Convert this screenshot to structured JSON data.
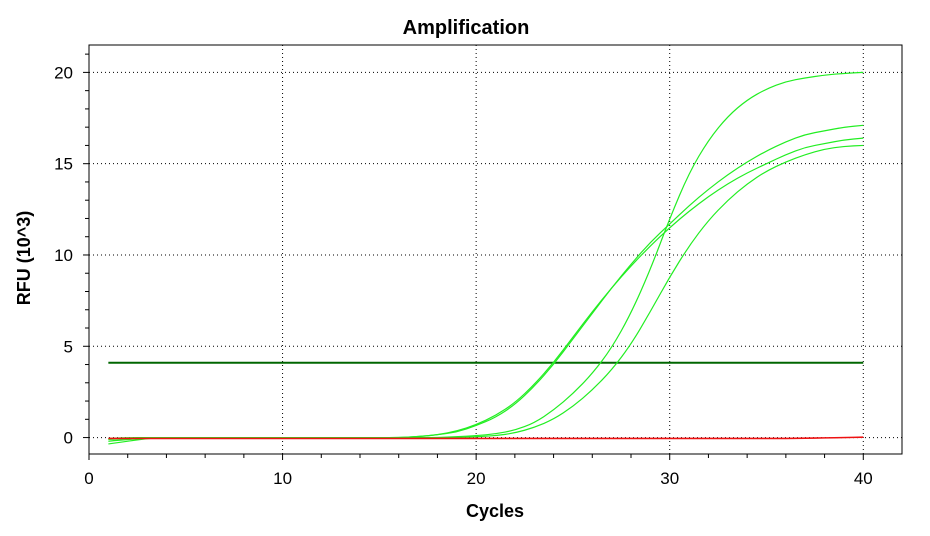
{
  "chart_data": {
    "type": "line",
    "title": "Amplification",
    "xlabel": "Cycles",
    "ylabel": "RFU (10^3)",
    "xlim": [
      0,
      42
    ],
    "ylim": [
      -0.9,
      21.5
    ],
    "x_ticks": [
      0,
      10,
      20,
      30,
      40
    ],
    "y_ticks": [
      0,
      5,
      10,
      15,
      20
    ],
    "grid": true,
    "legend": "none",
    "x": [
      1,
      2,
      3,
      4,
      5,
      6,
      7,
      8,
      9,
      10,
      11,
      12,
      13,
      14,
      15,
      16,
      17,
      18,
      19,
      20,
      21,
      22,
      23,
      24,
      25,
      26,
      27,
      28,
      29,
      30,
      31,
      32,
      33,
      34,
      35,
      36,
      37,
      38,
      39,
      40
    ],
    "series": [
      {
        "color": "#22ee22",
        "values": [
          -0.35,
          -0.2,
          -0.05,
          0,
          0,
          0,
          0,
          0,
          0,
          0,
          0,
          0,
          0,
          0,
          0,
          0,
          0.05,
          0.15,
          0.35,
          0.7,
          1.2,
          1.9,
          2.9,
          4.1,
          5.5,
          6.9,
          8.2,
          9.4,
          10.5,
          11.5,
          12.4,
          13.2,
          13.9,
          14.5,
          15.0,
          15.5,
          15.9,
          16.1,
          16.3,
          16.4
        ]
      },
      {
        "color": "#22ee22",
        "values": [
          -0.2,
          -0.1,
          -0.05,
          0,
          0,
          0,
          0,
          0,
          0,
          0,
          0,
          0,
          0,
          0,
          0,
          0,
          0.05,
          0.15,
          0.3,
          0.65,
          1.1,
          1.8,
          2.8,
          4.0,
          5.4,
          6.8,
          8.2,
          9.5,
          10.7,
          11.7,
          12.7,
          13.6,
          14.4,
          15.1,
          15.7,
          16.2,
          16.6,
          16.8,
          17.0,
          17.1
        ]
      },
      {
        "color": "#22ee22",
        "values": [
          -0.1,
          -0.05,
          0,
          0,
          0,
          0,
          0,
          0,
          0,
          0,
          0,
          0,
          0,
          0,
          0,
          0,
          0,
          0,
          0.05,
          0.1,
          0.2,
          0.4,
          0.8,
          1.5,
          2.4,
          3.5,
          4.9,
          6.8,
          9.2,
          12.0,
          14.5,
          16.3,
          17.6,
          18.5,
          19.1,
          19.5,
          19.7,
          19.85,
          19.95,
          20.0
        ]
      },
      {
        "color": "#22ee22",
        "values": [
          -0.05,
          0,
          0,
          0,
          0,
          0,
          0,
          0,
          0,
          0,
          0,
          0,
          0,
          0,
          0,
          0,
          0,
          0,
          0,
          0.05,
          0.1,
          0.25,
          0.55,
          1.0,
          1.7,
          2.6,
          3.7,
          5.1,
          6.9,
          8.8,
          10.5,
          11.9,
          13.0,
          13.9,
          14.6,
          15.1,
          15.5,
          15.8,
          15.95,
          16.0
        ]
      },
      {
        "color": "#ee1111",
        "values": [
          -0.05,
          -0.05,
          -0.05,
          -0.05,
          -0.05,
          -0.05,
          -0.05,
          -0.05,
          -0.05,
          -0.05,
          -0.05,
          -0.05,
          -0.05,
          -0.05,
          -0.05,
          -0.05,
          -0.05,
          -0.05,
          -0.05,
          -0.05,
          -0.05,
          -0.05,
          -0.05,
          -0.05,
          -0.05,
          -0.05,
          -0.05,
          -0.05,
          -0.05,
          -0.05,
          -0.05,
          -0.05,
          -0.05,
          -0.05,
          -0.05,
          -0.05,
          -0.03,
          -0.02,
          0,
          0.02
        ]
      }
    ],
    "threshold": {
      "value": 4.1,
      "x_range": [
        1,
        40
      ],
      "color": "#006600"
    }
  }
}
